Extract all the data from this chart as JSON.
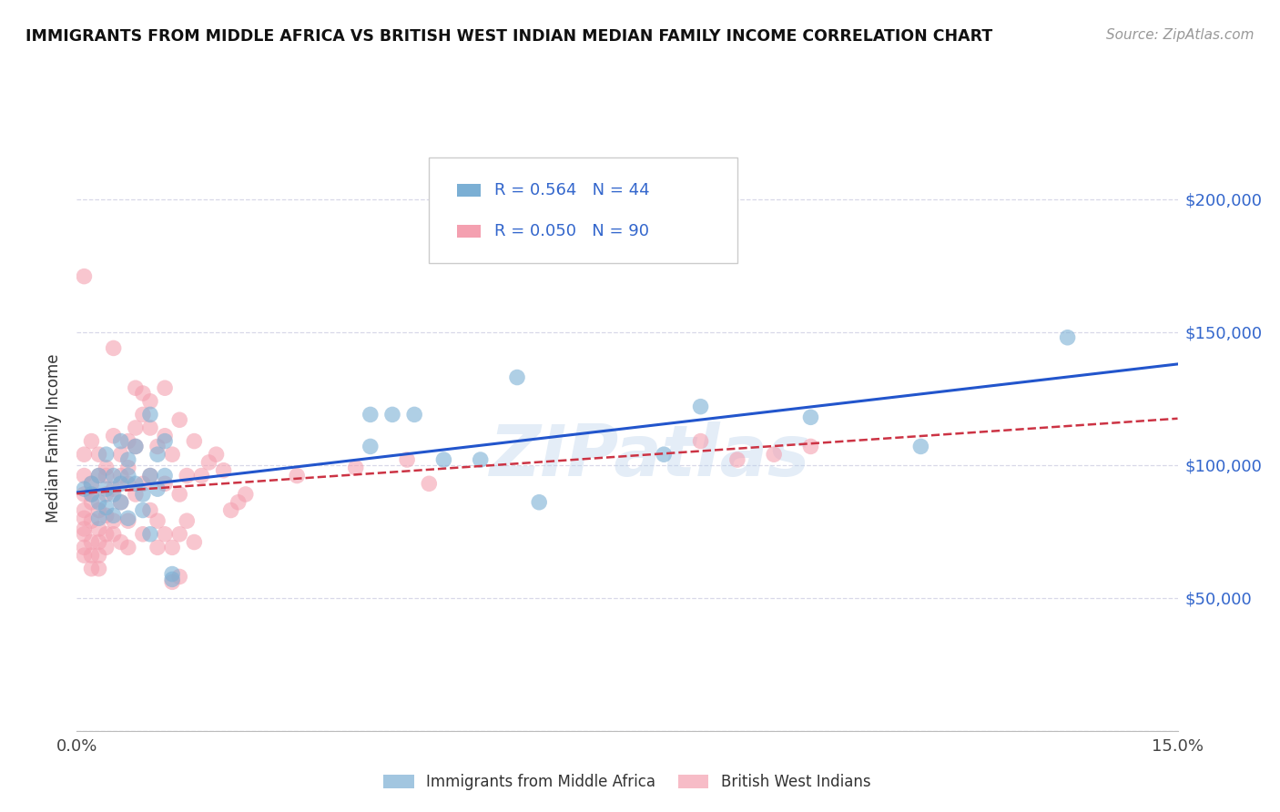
{
  "title": "IMMIGRANTS FROM MIDDLE AFRICA VS BRITISH WEST INDIAN MEDIAN FAMILY INCOME CORRELATION CHART",
  "source": "Source: ZipAtlas.com",
  "ylabel": "Median Family Income",
  "xlim": [
    0.0,
    0.15
  ],
  "ylim": [
    0,
    220000
  ],
  "yticks": [
    0,
    50000,
    100000,
    150000,
    200000
  ],
  "bg_color": "#ffffff",
  "grid_color": "#d8d8e8",
  "r_blue": 0.564,
  "n_blue": 44,
  "r_pink": 0.05,
  "n_pink": 90,
  "blue_color": "#7bafd4",
  "pink_color": "#f4a0b0",
  "line_blue_color": "#2255cc",
  "line_pink_color": "#cc3344",
  "legend_label_blue": "Immigrants from Middle Africa",
  "legend_label_pink": "British West Indians",
  "watermark": "ZIPatlas",
  "blue_scatter": [
    [
      0.001,
      91000
    ],
    [
      0.002,
      89000
    ],
    [
      0.002,
      93000
    ],
    [
      0.003,
      86000
    ],
    [
      0.003,
      96000
    ],
    [
      0.003,
      80000
    ],
    [
      0.004,
      91000
    ],
    [
      0.004,
      104000
    ],
    [
      0.004,
      84000
    ],
    [
      0.005,
      96000
    ],
    [
      0.005,
      89000
    ],
    [
      0.005,
      81000
    ],
    [
      0.006,
      109000
    ],
    [
      0.006,
      93000
    ],
    [
      0.006,
      86000
    ],
    [
      0.007,
      102000
    ],
    [
      0.007,
      96000
    ],
    [
      0.007,
      80000
    ],
    [
      0.008,
      107000
    ],
    [
      0.008,
      93000
    ],
    [
      0.009,
      89000
    ],
    [
      0.009,
      83000
    ],
    [
      0.01,
      119000
    ],
    [
      0.01,
      96000
    ],
    [
      0.01,
      74000
    ],
    [
      0.011,
      104000
    ],
    [
      0.011,
      91000
    ],
    [
      0.012,
      109000
    ],
    [
      0.012,
      96000
    ],
    [
      0.013,
      57000
    ],
    [
      0.013,
      59000
    ],
    [
      0.04,
      119000
    ],
    [
      0.04,
      107000
    ],
    [
      0.043,
      119000
    ],
    [
      0.046,
      119000
    ],
    [
      0.05,
      102000
    ],
    [
      0.055,
      102000
    ],
    [
      0.06,
      133000
    ],
    [
      0.063,
      86000
    ],
    [
      0.08,
      104000
    ],
    [
      0.085,
      122000
    ],
    [
      0.1,
      118000
    ],
    [
      0.115,
      107000
    ],
    [
      0.135,
      148000
    ]
  ],
  "pink_scatter": [
    [
      0.001,
      76000
    ],
    [
      0.001,
      80000
    ],
    [
      0.001,
      104000
    ],
    [
      0.001,
      96000
    ],
    [
      0.001,
      89000
    ],
    [
      0.001,
      83000
    ],
    [
      0.001,
      74000
    ],
    [
      0.001,
      69000
    ],
    [
      0.001,
      66000
    ],
    [
      0.002,
      79000
    ],
    [
      0.002,
      93000
    ],
    [
      0.002,
      86000
    ],
    [
      0.002,
      71000
    ],
    [
      0.002,
      66000
    ],
    [
      0.002,
      61000
    ],
    [
      0.002,
      89000
    ],
    [
      0.002,
      109000
    ],
    [
      0.003,
      83000
    ],
    [
      0.003,
      96000
    ],
    [
      0.003,
      104000
    ],
    [
      0.003,
      76000
    ],
    [
      0.003,
      71000
    ],
    [
      0.003,
      66000
    ],
    [
      0.003,
      61000
    ],
    [
      0.004,
      89000
    ],
    [
      0.004,
      96000
    ],
    [
      0.004,
      81000
    ],
    [
      0.004,
      74000
    ],
    [
      0.004,
      99000
    ],
    [
      0.004,
      69000
    ],
    [
      0.005,
      91000
    ],
    [
      0.005,
      79000
    ],
    [
      0.005,
      111000
    ],
    [
      0.005,
      74000
    ],
    [
      0.006,
      104000
    ],
    [
      0.006,
      96000
    ],
    [
      0.006,
      86000
    ],
    [
      0.006,
      71000
    ],
    [
      0.007,
      109000
    ],
    [
      0.007,
      93000
    ],
    [
      0.007,
      79000
    ],
    [
      0.007,
      69000
    ],
    [
      0.007,
      99000
    ],
    [
      0.008,
      107000
    ],
    [
      0.008,
      114000
    ],
    [
      0.008,
      89000
    ],
    [
      0.009,
      119000
    ],
    [
      0.009,
      93000
    ],
    [
      0.009,
      74000
    ],
    [
      0.01,
      114000
    ],
    [
      0.01,
      96000
    ],
    [
      0.01,
      124000
    ],
    [
      0.01,
      83000
    ],
    [
      0.011,
      107000
    ],
    [
      0.011,
      79000
    ],
    [
      0.011,
      69000
    ],
    [
      0.012,
      111000
    ],
    [
      0.012,
      93000
    ],
    [
      0.012,
      74000
    ],
    [
      0.013,
      104000
    ],
    [
      0.013,
      69000
    ],
    [
      0.014,
      117000
    ],
    [
      0.014,
      89000
    ],
    [
      0.014,
      74000
    ],
    [
      0.015,
      96000
    ],
    [
      0.015,
      79000
    ],
    [
      0.016,
      109000
    ],
    [
      0.016,
      71000
    ],
    [
      0.017,
      96000
    ],
    [
      0.018,
      101000
    ],
    [
      0.019,
      104000
    ],
    [
      0.02,
      98000
    ],
    [
      0.021,
      83000
    ],
    [
      0.022,
      86000
    ],
    [
      0.023,
      89000
    ],
    [
      0.001,
      171000
    ],
    [
      0.005,
      144000
    ],
    [
      0.008,
      129000
    ],
    [
      0.009,
      127000
    ],
    [
      0.012,
      129000
    ],
    [
      0.013,
      56000
    ],
    [
      0.014,
      58000
    ],
    [
      0.03,
      96000
    ],
    [
      0.038,
      99000
    ],
    [
      0.045,
      102000
    ],
    [
      0.048,
      93000
    ],
    [
      0.085,
      109000
    ],
    [
      0.09,
      102000
    ],
    [
      0.095,
      104000
    ],
    [
      0.1,
      107000
    ]
  ]
}
